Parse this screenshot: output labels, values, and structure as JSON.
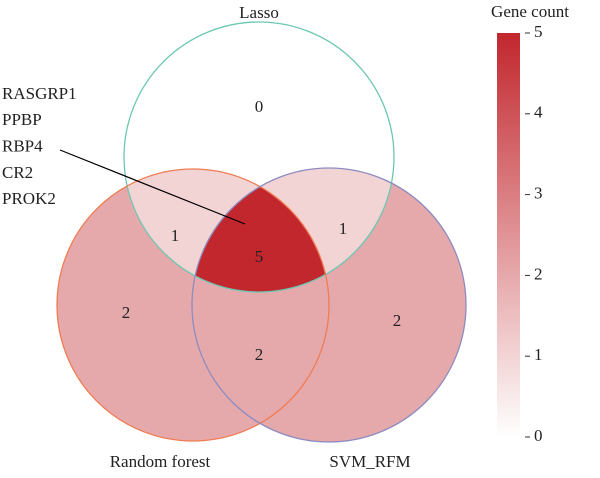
{
  "chart_data": {
    "type": "venn",
    "sets": [
      {
        "name": "Lasso",
        "color": "#6cc7b2"
      },
      {
        "name": "Random forest",
        "color": "#f07b52"
      },
      {
        "name": "SVM_RFM",
        "color": "#8c8cc0"
      }
    ],
    "regions": [
      {
        "sets": [
          0
        ],
        "value": 0
      },
      {
        "sets": [
          0,
          1
        ],
        "value": 1
      },
      {
        "sets": [
          0,
          2
        ],
        "value": 1
      },
      {
        "sets": [
          0,
          1,
          2
        ],
        "value": 5
      },
      {
        "sets": [
          1
        ],
        "value": 2
      },
      {
        "sets": [
          1,
          2
        ],
        "value": 2
      },
      {
        "sets": [
          2
        ],
        "value": 2
      }
    ],
    "annotation": {
      "labels": [
        "RASGRP1",
        "PPBP",
        "RBP4",
        "CR2",
        "PROK2"
      ],
      "region": 3
    },
    "colorbar": {
      "title": "Gene count",
      "colors": [
        "#ffffff",
        "#c1272d"
      ],
      "lim": [
        0,
        5
      ],
      "ticks": [
        0,
        1,
        2,
        3,
        4,
        5
      ]
    }
  }
}
